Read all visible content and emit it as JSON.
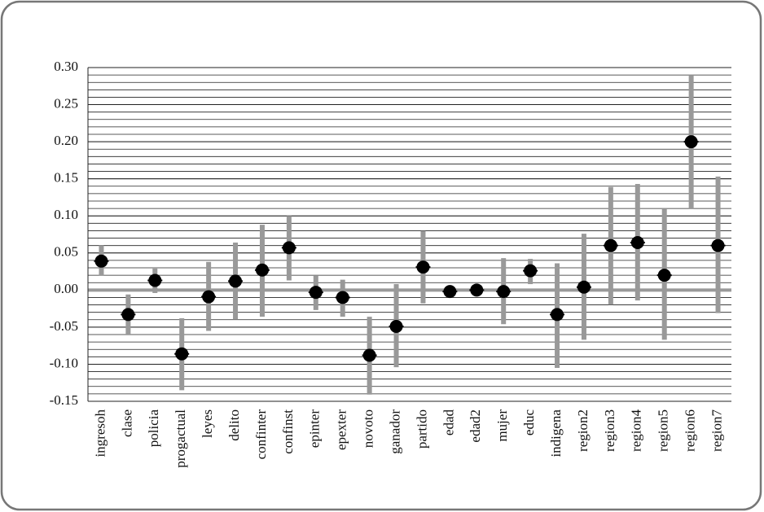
{
  "chart_data": {
    "type": "errorbar",
    "categories": [
      "ingresoh",
      "clase",
      "policia",
      "progactual",
      "leyes",
      "delito",
      "confinter",
      "confinst",
      "epinter",
      "epexter",
      "novoto",
      "ganador",
      "partido",
      "edad",
      "edad2",
      "mujer",
      "educ",
      "indigena",
      "region2",
      "region3",
      "region4",
      "region5",
      "region6",
      "region7"
    ],
    "series": [
      {
        "color": "#000000",
        "bar_color": "#999999",
        "values": [
          0.039,
          -0.033,
          0.013,
          -0.086,
          -0.009,
          0.012,
          0.027,
          0.057,
          -0.003,
          -0.01,
          -0.088,
          -0.049,
          0.031,
          -0.002,
          0.0,
          -0.002,
          0.026,
          -0.033,
          0.004,
          0.06,
          0.064,
          0.02,
          0.2,
          0.06
        ],
        "lower": [
          0.02,
          -0.06,
          -0.004,
          -0.135,
          -0.055,
          -0.04,
          -0.036,
          0.013,
          -0.027,
          -0.036,
          -0.141,
          -0.104,
          -0.018,
          -0.003,
          -0.001,
          -0.046,
          0.008,
          -0.105,
          -0.067,
          -0.02,
          -0.014,
          -0.067,
          0.11,
          -0.031
        ],
        "upper": [
          0.06,
          -0.006,
          0.029,
          -0.038,
          0.038,
          0.064,
          0.088,
          0.1,
          0.02,
          0.014,
          -0.036,
          0.008,
          0.08,
          -0.001,
          0.001,
          0.043,
          0.042,
          0.036,
          0.076,
          0.139,
          0.143,
          0.109,
          0.289,
          0.153
        ]
      }
    ],
    "ylim": [
      -0.15,
      0.3
    ],
    "yticks": [
      {
        "value": 0.3,
        "label": "0.30"
      },
      {
        "value": 0.25,
        "label": "0.25"
      },
      {
        "value": 0.2,
        "label": "0.20"
      },
      {
        "value": 0.15,
        "label": "0.15"
      },
      {
        "value": 0.1,
        "label": "0.10"
      },
      {
        "value": 0.05,
        "label": "0.05"
      },
      {
        "value": 0,
        "label": "0.00"
      },
      {
        "value": -0.05,
        "label": "-0.05"
      },
      {
        "value": -0.1,
        "label": "-0.10"
      },
      {
        "value": -0.15,
        "label": "-0.15"
      }
    ],
    "minor_grid_step": 0.01,
    "grid": true
  }
}
